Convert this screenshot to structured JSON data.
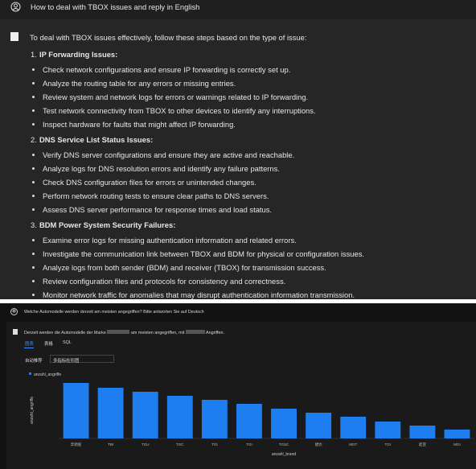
{
  "top": {
    "question": "How to deal with TBOX issues and reply in English",
    "intro": "To deal with TBOX issues effectively, follow these steps based on the type of issue:",
    "sections": [
      {
        "number": "1.",
        "title": "IP Forwarding Issues:",
        "items": [
          "Check network configurations and ensure IP forwarding is correctly set up.",
          "Analyze the routing table for any errors or missing entries.",
          "Review system and network logs for errors or warnings related to IP forwarding.",
          "Test network connectivity from TBOX to other devices to identify any interruptions.",
          "Inspect hardware for faults that might affect IP forwarding."
        ]
      },
      {
        "number": "2.",
        "title": "DNS Service List Status Issues:",
        "items": [
          "Verify DNS server configurations and ensure they are active and reachable.",
          "Analyze logs for DNS resolution errors and identify any failure patterns.",
          "Check DNS configuration files for errors or unintended changes.",
          "Perform network routing tests to ensure clear paths to DNS servers.",
          "Assess DNS server performance for response times and load status."
        ]
      },
      {
        "number": "3.",
        "title": "BDM Power System Security Failures:",
        "items": [
          "Examine error logs for missing authentication information and related errors.",
          "Investigate the communication link between TBOX and BDM for physical or configuration issues.",
          "Analyze logs from both sender (BDM) and receiver (TBOX) for transmission success.",
          "Review configuration files and protocols for consistency and correctness.",
          "Monitor network traffic for anomalies that may disrupt authentication information transmission."
        ]
      }
    ]
  },
  "bottom": {
    "question": "Welche Automodelle werden derzeit am meisten angegriffen? Bitte antworten Sie auf Deutsch",
    "answer_parts": [
      "Derzeit werden die Automodelle der Marke",
      "am meisten angegriffen, mit",
      "Angriffen."
    ],
    "tabs": [
      "图表",
      "表格",
      "SQL"
    ],
    "mode_label": "自动推荐",
    "chart_select": "多指标柱形图",
    "chart_data": {
      "type": "bar",
      "y_label": "anzahl_angriffe",
      "x_label": "anzahl_brand",
      "categories": [
        "奔驰股",
        "TBI",
        "TGU",
        "TGC",
        "TGI",
        "TGI",
        "TGSC",
        "捷达",
        "MGT",
        "TGI",
        "起亚",
        "MGI"
      ],
      "series": [
        {
          "name": "anzahl_angriffe",
          "color": "#1e7ef0",
          "values": [
            69,
            63,
            58,
            53,
            48,
            43,
            37,
            32,
            27,
            21,
            16,
            11
          ]
        }
      ],
      "ylim": [
        0,
        80
      ]
    }
  }
}
